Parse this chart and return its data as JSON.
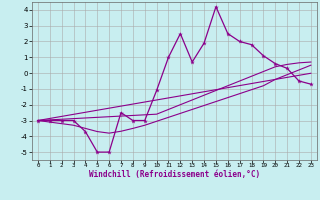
{
  "title": "",
  "xlabel": "Windchill (Refroidissement éolien,°C)",
  "bg_color": "#c8eef0",
  "grid_color": "#aaaaaa",
  "line_color": "#8b008b",
  "xlim": [
    -0.5,
    23.5
  ],
  "ylim": [
    -5.5,
    4.5
  ],
  "xticks": [
    0,
    1,
    2,
    3,
    4,
    5,
    6,
    7,
    8,
    9,
    10,
    11,
    12,
    13,
    14,
    15,
    16,
    17,
    18,
    19,
    20,
    21,
    22,
    23
  ],
  "yticks": [
    -5,
    -4,
    -3,
    -2,
    -1,
    0,
    1,
    2,
    3,
    4
  ],
  "hours": [
    0,
    1,
    2,
    3,
    4,
    5,
    6,
    7,
    8,
    9,
    10,
    11,
    12,
    13,
    14,
    15,
    16,
    17,
    18,
    19,
    20,
    21,
    22,
    23
  ],
  "data_line": [
    -3,
    -3,
    -3,
    -3,
    -3.7,
    -5,
    -5,
    -2.5,
    -3,
    -3,
    -1.1,
    1.0,
    2.5,
    0.7,
    1.9,
    4.2,
    2.5,
    2.0,
    1.8,
    1.1,
    0.6,
    0.3,
    -0.5,
    -0.7
  ],
  "ref_line1": [
    -3.0,
    -2.87,
    -2.74,
    -2.61,
    -2.48,
    -2.35,
    -2.22,
    -2.09,
    -1.96,
    -1.83,
    -1.7,
    -1.57,
    -1.44,
    -1.31,
    -1.18,
    -1.05,
    -0.92,
    -0.79,
    -0.66,
    -0.53,
    -0.4,
    -0.27,
    -0.14,
    -0.01
  ],
  "ref_line2": [
    -3.0,
    -2.96,
    -2.92,
    -2.88,
    -2.84,
    -2.8,
    -2.76,
    -2.72,
    -2.68,
    -2.64,
    -2.6,
    -2.3,
    -2.0,
    -1.7,
    -1.4,
    -1.1,
    -0.8,
    -0.5,
    -0.2,
    0.1,
    0.4,
    0.55,
    0.65,
    0.7
  ],
  "ref_line3": [
    -3.0,
    -3.1,
    -3.2,
    -3.3,
    -3.5,
    -3.7,
    -3.8,
    -3.68,
    -3.5,
    -3.3,
    -3.05,
    -2.8,
    -2.55,
    -2.3,
    -2.05,
    -1.8,
    -1.55,
    -1.3,
    -1.05,
    -0.8,
    -0.4,
    -0.1,
    0.2,
    0.5
  ]
}
